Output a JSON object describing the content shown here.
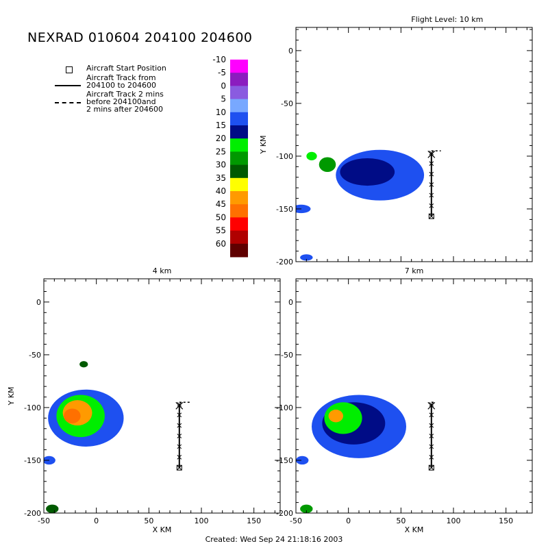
{
  "header": {
    "title": "NEXRAD 010604 204100 204600",
    "footer": "Created: Wed Sep 24 21:18:16 2003"
  },
  "legend": {
    "items": [
      {
        "symbol": "square",
        "text": "Aircraft Start Position"
      },
      {
        "symbol": "solid",
        "text": "Aircraft Track from\n204100 to 204600"
      },
      {
        "symbol": "dashed",
        "text": "Aircraft Track 2 mins\nbefore 204100and\n2 mins after 204600"
      }
    ]
  },
  "colorbar": {
    "levels": [
      "-10",
      "-5",
      "0",
      "5",
      "10",
      "15",
      "20",
      "25",
      "30",
      "35",
      "40",
      "45",
      "50",
      "55",
      "60"
    ],
    "colors": [
      "#ff00ff",
      "#8b1cbf",
      "#8a5be0",
      "#78a8ff",
      "#1e50f0",
      "#000c86",
      "#00ee00",
      "#009900",
      "#005a00",
      "#ffff00",
      "#ff9a00",
      "#ff7000",
      "#ff0000",
      "#b00000",
      "#600000"
    ]
  },
  "chart_data": [
    {
      "type": "heatmap",
      "title": "Flight Level: 10 km",
      "xlabel": "",
      "ylabel": "Y KM",
      "xlim": [
        -50,
        175
      ],
      "ylim": [
        -200,
        22
      ],
      "xticks": [],
      "yticks": [
        0,
        -50,
        -100,
        -150,
        -200
      ],
      "echo_regions": [
        {
          "level": "10",
          "center": [
            30,
            -118
          ],
          "radius": [
            42,
            24
          ]
        },
        {
          "level": "15",
          "center": [
            18,
            -115
          ],
          "radius": [
            26,
            13
          ]
        },
        {
          "level": "25",
          "center": [
            -20,
            -108
          ],
          "radius": [
            8,
            7
          ]
        },
        {
          "level": "20",
          "center": [
            -35,
            -100
          ],
          "radius": [
            5,
            4
          ]
        },
        {
          "level": "10",
          "center": [
            -45,
            -150
          ],
          "radius": [
            9,
            4
          ]
        },
        {
          "level": "10",
          "center": [
            -40,
            -196
          ],
          "radius": [
            6,
            3
          ]
        }
      ],
      "aircraft_track": {
        "x": [
          79,
          79,
          79,
          79,
          79,
          79,
          79
        ],
        "y": [
          -157,
          -147,
          -137,
          -127,
          -117,
          -107,
          -97
        ]
      },
      "start_position": {
        "x": 79,
        "y": -157
      },
      "track_extension": {
        "x": [
          79,
          88
        ],
        "y": [
          -95,
          -95
        ]
      }
    },
    {
      "type": "heatmap",
      "title": "4 km",
      "xlabel": "X KM",
      "ylabel": "Y KM",
      "xlim": [
        -50,
        175
      ],
      "ylim": [
        -200,
        22
      ],
      "xticks": [
        -50,
        0,
        50,
        100,
        150
      ],
      "yticks": [
        0,
        -50,
        -100,
        -150,
        -200
      ],
      "echo_regions": [
        {
          "level": "10",
          "center": [
            -10,
            -110
          ],
          "radius": [
            36,
            27
          ]
        },
        {
          "level": "20",
          "center": [
            -15,
            -108
          ],
          "radius": [
            23,
            20
          ]
        },
        {
          "level": "40",
          "center": [
            -18,
            -105
          ],
          "radius": [
            14,
            12
          ]
        },
        {
          "level": "45",
          "center": [
            -23,
            -108
          ],
          "radius": [
            8,
            7
          ]
        },
        {
          "level": "30",
          "center": [
            -12,
            -59
          ],
          "radius": [
            4,
            3
          ]
        },
        {
          "level": "10",
          "center": [
            -45,
            -150
          ],
          "radius": [
            6,
            4
          ]
        },
        {
          "level": "30",
          "center": [
            -42,
            -196
          ],
          "radius": [
            6,
            4
          ]
        }
      ],
      "aircraft_track": {
        "x": [
          79,
          79,
          79,
          79,
          79,
          79,
          79
        ],
        "y": [
          -157,
          -147,
          -137,
          -127,
          -117,
          -107,
          -97
        ]
      },
      "start_position": {
        "x": 79,
        "y": -157
      },
      "track_extension": {
        "x": [
          79,
          90
        ],
        "y": [
          -95,
          -95
        ]
      }
    },
    {
      "type": "heatmap",
      "title": "7 km",
      "xlabel": "X KM",
      "ylabel": "",
      "xlim": [
        -50,
        175
      ],
      "ylim": [
        -200,
        22
      ],
      "xticks": [
        -50,
        0,
        50,
        100,
        150
      ],
      "yticks": [
        0,
        -50,
        -100,
        -150,
        -200
      ],
      "echo_regions": [
        {
          "level": "10",
          "center": [
            10,
            -118
          ],
          "radius": [
            45,
            30
          ]
        },
        {
          "level": "15",
          "center": [
            5,
            -115
          ],
          "radius": [
            30,
            20
          ]
        },
        {
          "level": "20",
          "center": [
            -5,
            -110
          ],
          "radius": [
            18,
            15
          ]
        },
        {
          "level": "40",
          "center": [
            -12,
            -108
          ],
          "radius": [
            7,
            6
          ]
        },
        {
          "level": "10",
          "center": [
            -44,
            -150
          ],
          "radius": [
            6,
            4
          ]
        },
        {
          "level": "25",
          "center": [
            -40,
            -196
          ],
          "radius": [
            6,
            4
          ]
        }
      ],
      "aircraft_track": {
        "x": [
          79,
          79,
          79,
          79,
          79,
          79,
          79
        ],
        "y": [
          -157,
          -147,
          -137,
          -127,
          -117,
          -107,
          -97
        ]
      },
      "start_position": {
        "x": 79,
        "y": -157
      },
      "track_extension": {
        "x": [
          79,
          82
        ],
        "y": [
          -95,
          -95
        ]
      }
    }
  ]
}
